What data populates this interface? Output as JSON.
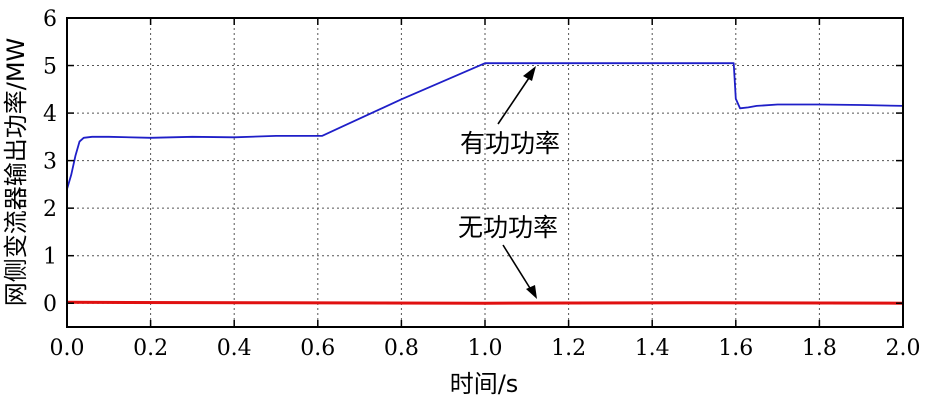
{
  "chart_data": {
    "type": "line",
    "xlabel": "时间/s",
    "ylabel": "网侧变流器输出功率/MW",
    "xlim": [
      0,
      2.0
    ],
    "ylim": [
      -0.5,
      6
    ],
    "grid": true,
    "x_ticks": [
      "0.0",
      "0.2",
      "0.4",
      "0.6",
      "0.8",
      "1.0",
      "1.2",
      "1.4",
      "1.6",
      "1.8",
      "2.0"
    ],
    "y_ticks": [
      "0",
      "1",
      "2",
      "3",
      "4",
      "5",
      "6"
    ],
    "series": [
      {
        "name": "有功功率",
        "color": "#1f1fc8",
        "x": [
          0,
          0.005,
          0.01,
          0.02,
          0.03,
          0.04,
          0.06,
          0.1,
          0.2,
          0.3,
          0.4,
          0.5,
          0.6,
          0.61,
          0.8,
          1.0,
          1.2,
          1.4,
          1.595,
          1.6,
          1.61,
          1.63,
          1.65,
          1.7,
          1.8,
          1.9,
          2.0
        ],
        "y": [
          2.4,
          2.55,
          2.7,
          3.1,
          3.4,
          3.48,
          3.5,
          3.5,
          3.48,
          3.5,
          3.49,
          3.52,
          3.52,
          3.52,
          4.29,
          5.05,
          5.05,
          5.05,
          5.05,
          4.3,
          4.1,
          4.12,
          4.15,
          4.18,
          4.18,
          4.17,
          4.15
        ]
      },
      {
        "name": "无功功率",
        "color": "#e01010",
        "x": [
          0,
          0.5,
          1.0,
          1.5,
          2.0
        ],
        "y": [
          0.02,
          0.01,
          0.0,
          0.01,
          0.0
        ]
      }
    ],
    "annotations": [
      {
        "text": "有功功率",
        "x": 1.12,
        "y": 5.05
      },
      {
        "text": "无功功率",
        "x": 1.13,
        "y": 0.05
      }
    ]
  }
}
